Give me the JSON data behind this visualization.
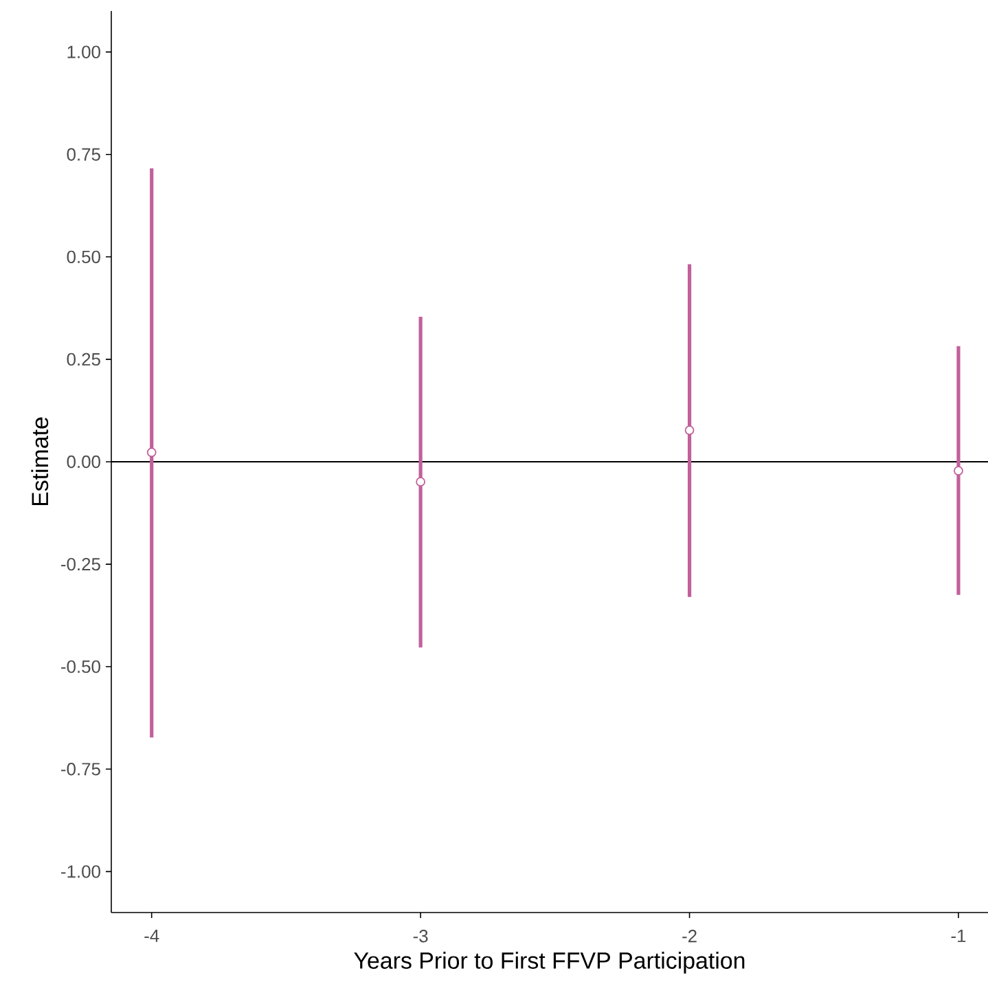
{
  "chart_data": {
    "type": "scatter",
    "xlabel": "Years Prior to First FFVP Participation",
    "ylabel": "Estimate",
    "x": [
      -4,
      -3,
      -2,
      -1
    ],
    "series": [
      {
        "color": "#c2609b",
        "values": [
          0.023,
          -0.049,
          0.077,
          -0.022
        ],
        "errors": [
          [
            -0.673,
            0.716
          ],
          [
            -0.453,
            0.354
          ],
          [
            -0.33,
            0.482
          ],
          [
            -0.325,
            0.282
          ]
        ]
      }
    ],
    "xlim": [
      -4.15,
      -0.89
    ],
    "xticks": [
      -4,
      -3,
      -2,
      -1
    ],
    "ylim": [
      -1.1,
      1.1
    ],
    "yticks": [
      {
        "value": -1,
        "label": "-1.00"
      },
      {
        "value": -0.75,
        "label": "-0.75"
      },
      {
        "value": -0.5,
        "label": "-0.50"
      },
      {
        "value": -0.25,
        "label": "-0.25"
      },
      {
        "value": 0,
        "label": "0.00"
      },
      {
        "value": 0.25,
        "label": "0.25"
      },
      {
        "value": 0.5,
        "label": "0.50"
      },
      {
        "value": 0.75,
        "label": "0.75"
      },
      {
        "value": 1,
        "label": "1.00"
      }
    ],
    "ref_lines": [
      {
        "axis": "y",
        "value": 0,
        "color": "#000000"
      }
    ],
    "grid": false
  }
}
